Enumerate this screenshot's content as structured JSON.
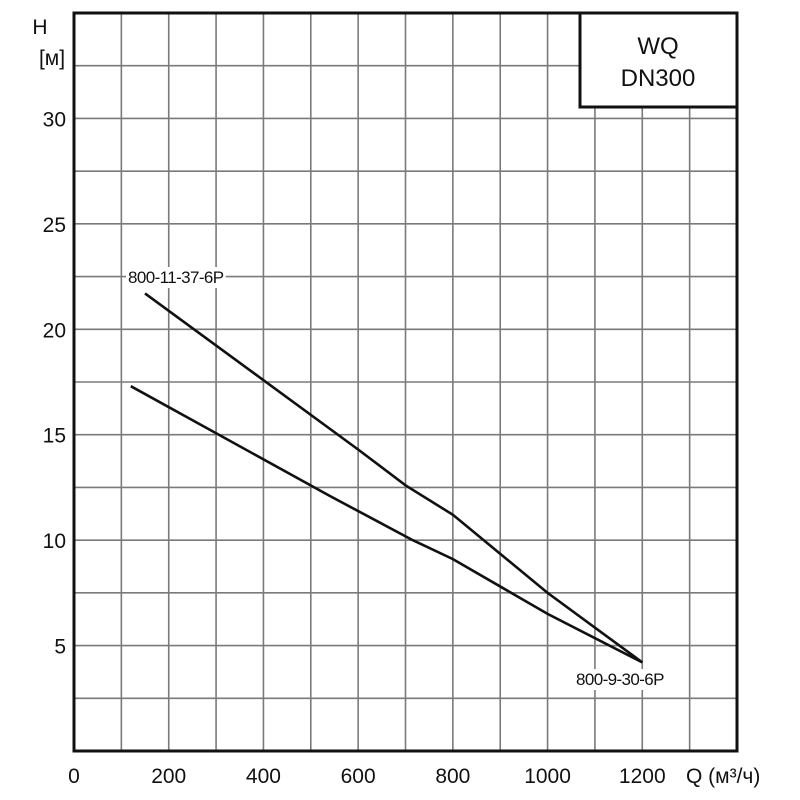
{
  "title_box": {
    "line1": "WQ",
    "line2": "DN300"
  },
  "axes": {
    "y_title_line1": "H",
    "y_title_line2": "[м]",
    "x_title": "Q (м³/ч)"
  },
  "chart_data": {
    "type": "line",
    "title": "WQ DN300",
    "xlabel": "Q (м³/ч)",
    "ylabel": "H [м]",
    "xlim": [
      0,
      1400
    ],
    "ylim": [
      0,
      35
    ],
    "x_ticks": [
      0,
      200,
      400,
      600,
      800,
      1000,
      1200
    ],
    "x_tick_labels": [
      "0",
      "200",
      "400",
      "600",
      "800",
      "1000",
      "1200"
    ],
    "y_ticks": [
      5,
      10,
      15,
      20,
      25,
      30
    ],
    "y_tick_labels": [
      "5",
      "10",
      "15",
      "20",
      "25",
      "30"
    ],
    "x_grid_step": 100,
    "y_grid_step": 2.5,
    "grid": true,
    "legend_position": "inline labels",
    "series": [
      {
        "name": "800-11-37-6P",
        "x": [
          150,
          600,
          700,
          800,
          1000,
          1200
        ],
        "y": [
          21.7,
          14.3,
          12.6,
          11.2,
          7.5,
          4.2
        ],
        "label_position": "upper-left near start"
      },
      {
        "name": "800-9-30-6P",
        "x": [
          120,
          540,
          715,
          800,
          1000,
          1200
        ],
        "y": [
          17.3,
          12.1,
          10.0,
          9.1,
          6.5,
          4.2
        ],
        "label_position": "below end point"
      }
    ]
  }
}
